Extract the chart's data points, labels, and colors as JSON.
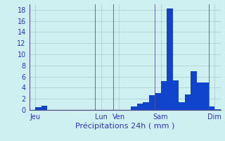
{
  "xlabel": "Précipitations 24h ( mm )",
  "background_color": "#cff0f0",
  "bar_color": "#1144cc",
  "ylim": [
    0,
    19
  ],
  "yticks": [
    0,
    2,
    4,
    6,
    8,
    10,
    12,
    14,
    16,
    18
  ],
  "values": [
    0,
    0.5,
    0.7,
    0,
    0,
    0,
    0,
    0,
    0,
    0,
    0,
    0,
    0,
    0,
    0,
    0,
    0,
    0.6,
    1.2,
    1.4,
    2.6,
    3.0,
    5.2,
    18.2,
    5.3,
    1.4,
    2.8,
    7.0,
    5.0,
    5.0,
    0.6,
    0.1
  ],
  "day_labels": [
    "Jeu",
    "Lun",
    "Ven",
    "Sam",
    "Dim"
  ],
  "day_tick_positions": [
    0.5,
    11.5,
    14.5,
    21.5,
    30.5
  ],
  "day_line_positions": [
    0,
    11,
    14,
    21,
    30
  ],
  "grid_color": "#aacccc",
  "grid_lw": 0.5,
  "tick_color": "#3333bb",
  "axis_color": "#555588",
  "fontsize_tick": 7,
  "fontsize_xlabel": 8
}
